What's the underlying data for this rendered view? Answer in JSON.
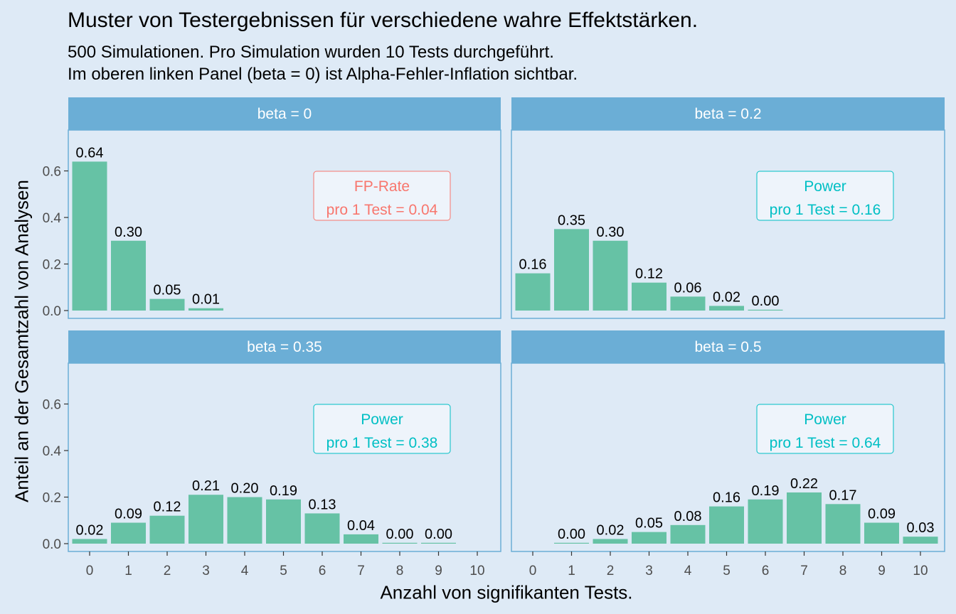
{
  "title": "Muster von Testergebnissen für verschiedene wahre Effektstärken.",
  "subtitle_lines": [
    "500 Simulationen. Pro Simulation wurden 10 Tests durchgeführt.",
    "Im oberen linken Panel (beta = 0) ist Alpha-Fehler-Inflation sichtbar."
  ],
  "colors": {
    "background": "#deeaf6",
    "bar": "#66c2a5",
    "strip": "#6baed6",
    "panel_border": "#6baed6",
    "fp_box": "#f8766d",
    "power_box": "#00bfc4"
  },
  "chart_data": {
    "type": "bar",
    "xlabel": "Anzahl von signifikanten Tests.",
    "ylabel": "Anteil an der Gesamtzahl von Analysen",
    "x_ticks": [
      "0",
      "1",
      "2",
      "3",
      "4",
      "5",
      "6",
      "7",
      "8",
      "9",
      "10"
    ],
    "y_ticks": [
      "0.0",
      "0.2",
      "0.4",
      "0.6"
    ],
    "ylim": [
      0,
      0.72
    ],
    "grid": false,
    "facets": [
      {
        "strip": "beta = 0",
        "values": [
          0.64,
          0.3,
          0.05,
          0.01
        ],
        "labels": [
          "0.64",
          "0.30",
          "0.05",
          "0.01"
        ],
        "box_kind": "fp",
        "box_line1": "FP-Rate",
        "box_line2": "pro 1 Test = 0.04"
      },
      {
        "strip": "beta = 0.2",
        "values": [
          0.16,
          0.35,
          0.3,
          0.12,
          0.06,
          0.02,
          0.0
        ],
        "labels": [
          "0.16",
          "0.35",
          "0.30",
          "0.12",
          "0.06",
          "0.02",
          "0.00"
        ],
        "box_kind": "power",
        "box_line1": "Power",
        "box_line2": "pro 1 Test = 0.16"
      },
      {
        "strip": "beta = 0.35",
        "values": [
          0.02,
          0.09,
          0.12,
          0.21,
          0.2,
          0.19,
          0.13,
          0.04,
          0.0,
          0.0
        ],
        "labels": [
          "0.02",
          "0.09",
          "0.12",
          "0.21",
          "0.20",
          "0.19",
          "0.13",
          "0.04",
          "0.00",
          "0.00"
        ],
        "box_kind": "power",
        "box_line1": "Power",
        "box_line2": "pro 1 Test = 0.38"
      },
      {
        "strip": "beta = 0.5",
        "values": [
          null,
          0.0,
          0.02,
          0.05,
          0.08,
          0.16,
          0.19,
          0.22,
          0.17,
          0.09,
          0.03
        ],
        "labels": [
          null,
          "0.00",
          "0.02",
          "0.05",
          "0.08",
          "0.16",
          "0.19",
          "0.22",
          "0.17",
          "0.09",
          "0.03"
        ],
        "box_kind": "power",
        "box_line1": "Power",
        "box_line2": "pro 1 Test = 0.64"
      }
    ]
  }
}
